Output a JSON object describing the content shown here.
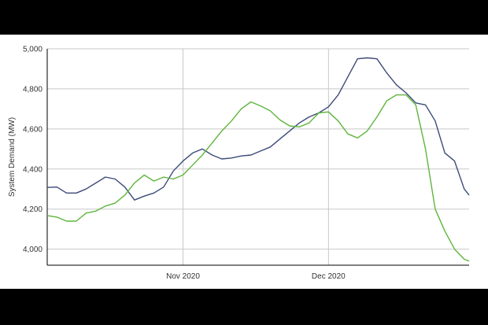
{
  "chart_data": {
    "type": "line",
    "ylabel": "System Demand (MW)",
    "ylim": [
      3920,
      5000
    ],
    "yticks": [
      4000,
      4200,
      4400,
      4600,
      4800,
      5000
    ],
    "ytick_labels": [
      "4,000",
      "4,200",
      "4,400",
      "4,600",
      "4,800",
      "5,000"
    ],
    "xlim": [
      "2020-10-04",
      "2020-12-30"
    ],
    "xticks": [
      "2020-11-01",
      "2020-12-01"
    ],
    "xtick_labels": [
      "Nov 2020",
      "Dec 2020"
    ],
    "grid": true,
    "legend": "none",
    "colors": {
      "navy": "#3b4a78",
      "green": "#5fb53c",
      "grid": "#c8c8c8",
      "frame": "#000000"
    },
    "x": [
      "2020-10-04",
      "2020-10-06",
      "2020-10-08",
      "2020-10-10",
      "2020-10-12",
      "2020-10-14",
      "2020-10-16",
      "2020-10-18",
      "2020-10-20",
      "2020-10-22",
      "2020-10-24",
      "2020-10-26",
      "2020-10-28",
      "2020-10-30",
      "2020-11-01",
      "2020-11-03",
      "2020-11-05",
      "2020-11-07",
      "2020-11-09",
      "2020-11-11",
      "2020-11-13",
      "2020-11-15",
      "2020-11-17",
      "2020-11-19",
      "2020-11-21",
      "2020-11-23",
      "2020-11-25",
      "2020-11-27",
      "2020-11-29",
      "2020-12-01",
      "2020-12-03",
      "2020-12-05",
      "2020-12-07",
      "2020-12-09",
      "2020-12-11",
      "2020-12-13",
      "2020-12-15",
      "2020-12-17",
      "2020-12-19",
      "2020-12-21",
      "2020-12-23",
      "2020-12-25",
      "2020-12-27",
      "2020-12-29",
      "2020-12-30"
    ],
    "series": [
      {
        "color": "#3b4a78",
        "values": [
          4308,
          4310,
          4280,
          4280,
          4300,
          4330,
          4360,
          4350,
          4310,
          4245,
          4265,
          4280,
          4310,
          4390,
          4440,
          4480,
          4500,
          4470,
          4450,
          4455,
          4465,
          4470,
          4490,
          4510,
          4550,
          4590,
          4630,
          4660,
          4680,
          4710,
          4770,
          4860,
          4950,
          4955,
          4950,
          4880,
          4820,
          4780,
          4730,
          4720,
          4640,
          4480,
          4440,
          4300,
          4270
        ]
      },
      {
        "color": "#5fb53c",
        "values": [
          4168,
          4160,
          4140,
          4140,
          4180,
          4190,
          4215,
          4230,
          4270,
          4330,
          4370,
          4340,
          4360,
          4350,
          4370,
          4420,
          4470,
          4530,
          4590,
          4640,
          4700,
          4735,
          4715,
          4690,
          4645,
          4615,
          4610,
          4630,
          4680,
          4685,
          4640,
          4575,
          4555,
          4590,
          4660,
          4740,
          4770,
          4770,
          4720,
          4500,
          4200,
          4090,
          4000,
          3950,
          3940
        ]
      }
    ]
  }
}
